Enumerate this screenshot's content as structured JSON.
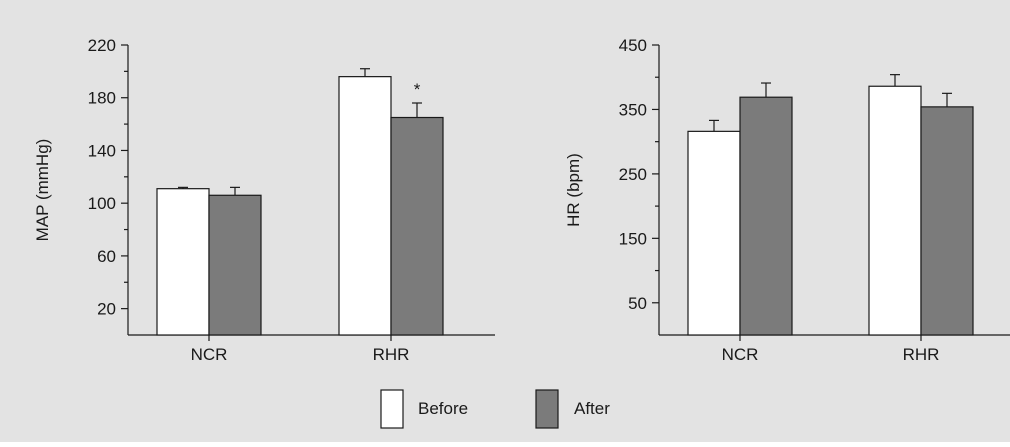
{
  "chart_data": [
    {
      "type": "bar",
      "ylabel": "MAP (mmHg)",
      "xlabel": "",
      "categories": [
        "NCR",
        "RHR"
      ],
      "ylim": [
        0,
        220
      ],
      "yticks": [
        20,
        60,
        100,
        140,
        180,
        220
      ],
      "grid": false,
      "series": [
        {
          "name": "Before",
          "color": "#ffffff",
          "values": [
            111,
            196
          ],
          "errors": [
            1,
            6
          ]
        },
        {
          "name": "After",
          "color": "#7b7b7b",
          "values": [
            106,
            165
          ],
          "errors": [
            6,
            11
          ]
        }
      ],
      "annotations": [
        {
          "category": "RHR",
          "series": "After",
          "text": "*"
        }
      ]
    },
    {
      "type": "bar",
      "ylabel": "HR (bpm)",
      "xlabel": "",
      "categories": [
        "NCR",
        "RHR"
      ],
      "ylim": [
        0,
        450
      ],
      "yticks": [
        50,
        150,
        250,
        350,
        450
      ],
      "grid": false,
      "series": [
        {
          "name": "Before",
          "color": "#ffffff",
          "values": [
            316,
            386
          ],
          "errors": [
            17,
            18
          ]
        },
        {
          "name": "After",
          "color": "#7b7b7b",
          "values": [
            369,
            354
          ],
          "errors": [
            22,
            21
          ]
        }
      ]
    }
  ],
  "legend": {
    "position": "bottom-center",
    "items": [
      {
        "label": "Before",
        "color": "#ffffff"
      },
      {
        "label": "After",
        "color": "#7b7b7b"
      }
    ]
  }
}
